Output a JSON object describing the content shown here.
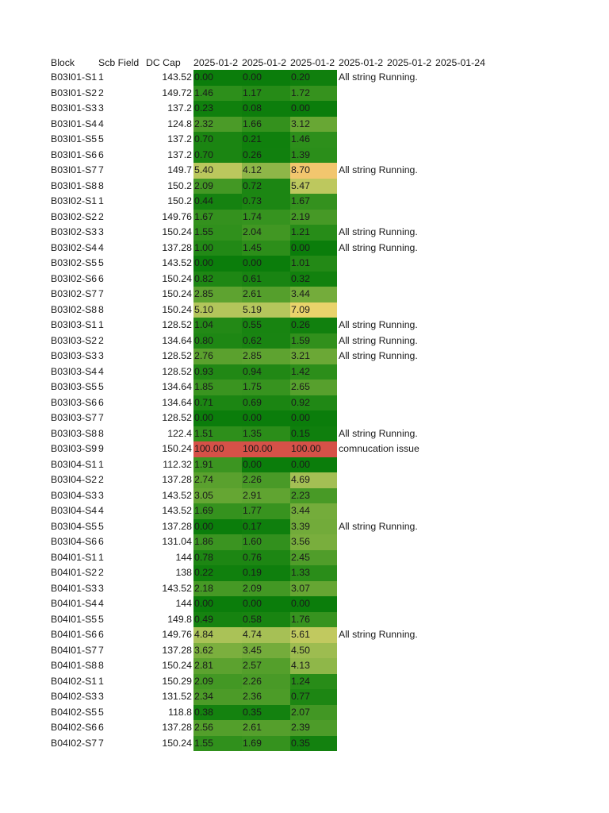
{
  "header": {
    "block": "Block",
    "scb_field": "Scb Field",
    "dc_cap": "DC Cap",
    "dates": [
      "2025-01-2",
      "2025-01-2",
      "2025-01-2",
      "2025-01-2",
      "2025-01-2",
      "2025-01-24"
    ]
  },
  "color_scale": {
    "stops": [
      {
        "v": 0,
        "color": "#0b7d0b"
      },
      {
        "v": 1.5,
        "color": "#2e8f1b"
      },
      {
        "v": 3,
        "color": "#63a532"
      },
      {
        "v": 5,
        "color": "#b0c45a"
      },
      {
        "v": 7,
        "color": "#e9d46b"
      },
      {
        "v": 9,
        "color": "#f4c36f"
      },
      {
        "v": 100,
        "color": "#d65148"
      }
    ]
  },
  "rows": [
    {
      "block": "B03I01-S1",
      "scb": "1",
      "dc": "143.52",
      "v": [
        "0.00",
        "0.00",
        "0.20"
      ],
      "remark": "All string Running."
    },
    {
      "block": "B03I01-S2",
      "scb": "2",
      "dc": "149.72",
      "v": [
        "1.46",
        "1.17",
        "1.72"
      ],
      "remark": ""
    },
    {
      "block": "B03I01-S3",
      "scb": "3",
      "dc": "137.2",
      "v": [
        "0.23",
        "0.08",
        "0.00"
      ],
      "remark": ""
    },
    {
      "block": "B03I01-S4",
      "scb": "4",
      "dc": "124.8",
      "v": [
        "2.32",
        "1.66",
        "3.12"
      ],
      "remark": ""
    },
    {
      "block": "B03I01-S5",
      "scb": "5",
      "dc": "137.2",
      "v": [
        "0.70",
        "0.21",
        "1.46"
      ],
      "remark": ""
    },
    {
      "block": "B03I01-S6",
      "scb": "6",
      "dc": "137.2",
      "v": [
        "0.70",
        "0.26",
        "1.39"
      ],
      "remark": ""
    },
    {
      "block": "B03I01-S7",
      "scb": "7",
      "dc": "149.7",
      "v": [
        "5.40",
        "4.12",
        "8.70"
      ],
      "remark": "All string Running."
    },
    {
      "block": "B03I01-S8",
      "scb": "8",
      "dc": "150.2",
      "v": [
        "2.09",
        "0.72",
        "5.47"
      ],
      "remark": ""
    },
    {
      "block": "B03I02-S1",
      "scb": "1",
      "dc": "150.2",
      "v": [
        "0.44",
        "0.73",
        "1.67"
      ],
      "remark": ""
    },
    {
      "block": "B03I02-S2",
      "scb": "2",
      "dc": "149.76",
      "v": [
        "1.67",
        "1.74",
        "2.19"
      ],
      "remark": ""
    },
    {
      "block": "B03I02-S3",
      "scb": "3",
      "dc": "150.24",
      "v": [
        "1.55",
        "2.04",
        "1.21"
      ],
      "remark": "All string Running."
    },
    {
      "block": "B03I02-S4",
      "scb": "4",
      "dc": "137.28",
      "v": [
        "1.00",
        "1.45",
        "0.00"
      ],
      "remark": "All string Running."
    },
    {
      "block": "B03I02-S5",
      "scb": "5",
      "dc": "143.52",
      "v": [
        "0.00",
        "0.00",
        "1.01"
      ],
      "remark": ""
    },
    {
      "block": "B03I02-S6",
      "scb": "6",
      "dc": "150.24",
      "v": [
        "0.82",
        "0.61",
        "0.32"
      ],
      "remark": ""
    },
    {
      "block": "B03I02-S7",
      "scb": "7",
      "dc": "150.24",
      "v": [
        "2.85",
        "2.61",
        "3.44"
      ],
      "remark": ""
    },
    {
      "block": "B03I02-S8",
      "scb": "8",
      "dc": "150.24",
      "v": [
        "5.10",
        "5.19",
        "7.09"
      ],
      "remark": ""
    },
    {
      "block": "B03I03-S1",
      "scb": "1",
      "dc": "128.52",
      "v": [
        "1.04",
        "0.55",
        "0.26"
      ],
      "remark": "All string Running."
    },
    {
      "block": "B03I03-S2",
      "scb": "2",
      "dc": "134.64",
      "v": [
        "0.80",
        "0.62",
        "1.59"
      ],
      "remark": "All string Running."
    },
    {
      "block": "B03I03-S3",
      "scb": "3",
      "dc": "128.52",
      "v": [
        "2.76",
        "2.85",
        "3.21"
      ],
      "remark": "All string Running."
    },
    {
      "block": "B03I03-S4",
      "scb": "4",
      "dc": "128.52",
      "v": [
        "0.93",
        "0.94",
        "1.42"
      ],
      "remark": ""
    },
    {
      "block": "B03I03-S5",
      "scb": "5",
      "dc": "134.64",
      "v": [
        "1.85",
        "1.75",
        "2.65"
      ],
      "remark": ""
    },
    {
      "block": "B03I03-S6",
      "scb": "6",
      "dc": "134.64",
      "v": [
        "0.71",
        "0.69",
        "0.92"
      ],
      "remark": ""
    },
    {
      "block": "B03I03-S7",
      "scb": "7",
      "dc": "128.52",
      "v": [
        "0.00",
        "0.00",
        "0.00"
      ],
      "remark": ""
    },
    {
      "block": "B03I03-S8",
      "scb": "8",
      "dc": "122.4",
      "v": [
        "1.51",
        "1.35",
        "0.15"
      ],
      "remark": "All string Running."
    },
    {
      "block": "B03I03-S9",
      "scb": "9",
      "dc": "150.24",
      "v": [
        "100.00",
        "100.00",
        "100.00"
      ],
      "remark": "comnucation issue"
    },
    {
      "block": "B03I04-S1",
      "scb": "1",
      "dc": "112.32",
      "v": [
        "1.91",
        "0.00",
        "0.00"
      ],
      "remark": ""
    },
    {
      "block": "B03I04-S2",
      "scb": "2",
      "dc": "137.28",
      "v": [
        "2.74",
        "2.26",
        "4.69"
      ],
      "remark": ""
    },
    {
      "block": "B03I04-S3",
      "scb": "3",
      "dc": "143.52",
      "v": [
        "3.05",
        "2.91",
        "2.23"
      ],
      "remark": ""
    },
    {
      "block": "B03I04-S4",
      "scb": "4",
      "dc": "143.52",
      "v": [
        "1.69",
        "1.77",
        "3.44"
      ],
      "remark": ""
    },
    {
      "block": "B03I04-S5",
      "scb": "5",
      "dc": "137.28",
      "v": [
        "0.00",
        "0.17",
        "3.39"
      ],
      "remark": "All string Running."
    },
    {
      "block": "B03I04-S6",
      "scb": "6",
      "dc": "131.04",
      "v": [
        "1.86",
        "1.60",
        "3.56"
      ],
      "remark": ""
    },
    {
      "block": "B04I01-S1",
      "scb": "1",
      "dc": "144",
      "v": [
        "0.78",
        "0.76",
        "2.45"
      ],
      "remark": ""
    },
    {
      "block": "B04I01-S2",
      "scb": "2",
      "dc": "138",
      "v": [
        "0.22",
        "0.19",
        "1.33"
      ],
      "remark": ""
    },
    {
      "block": "B04I01-S3",
      "scb": "3",
      "dc": "143.52",
      "v": [
        "2.18",
        "2.09",
        "3.07"
      ],
      "remark": ""
    },
    {
      "block": "B04I01-S4",
      "scb": "4",
      "dc": "144",
      "v": [
        "0.00",
        "0.00",
        "0.00"
      ],
      "remark": ""
    },
    {
      "block": "B04I01-S5",
      "scb": "5",
      "dc": "149.8",
      "v": [
        "0.49",
        "0.58",
        "1.76"
      ],
      "remark": ""
    },
    {
      "block": "B04I01-S6",
      "scb": "6",
      "dc": "149.76",
      "v": [
        "4.84",
        "4.74",
        "5.61"
      ],
      "remark": "All string Running."
    },
    {
      "block": "B04I01-S7",
      "scb": "7",
      "dc": "137.28",
      "v": [
        "3.62",
        "3.45",
        "4.50"
      ],
      "remark": ""
    },
    {
      "block": "B04I01-S8",
      "scb": "8",
      "dc": "150.24",
      "v": [
        "2.81",
        "2.57",
        "4.13"
      ],
      "remark": ""
    },
    {
      "block": "B04I02-S1",
      "scb": "1",
      "dc": "150.29",
      "v": [
        "2.09",
        "2.26",
        "1.24"
      ],
      "remark": ""
    },
    {
      "block": "B04I02-S3",
      "scb": "3",
      "dc": "131.52",
      "v": [
        "2.34",
        "2.36",
        "0.77"
      ],
      "remark": ""
    },
    {
      "block": "B04I02-S5",
      "scb": "5",
      "dc": "118.8",
      "v": [
        "0.38",
        "0.35",
        "2.07"
      ],
      "remark": ""
    },
    {
      "block": "B04I02-S6",
      "scb": "6",
      "dc": "137.28",
      "v": [
        "2.56",
        "2.61",
        "2.39"
      ],
      "remark": ""
    },
    {
      "block": "B04I02-S7",
      "scb": "7",
      "dc": "150.24",
      "v": [
        "1.55",
        "1.69",
        "0.35"
      ],
      "remark": ""
    }
  ]
}
